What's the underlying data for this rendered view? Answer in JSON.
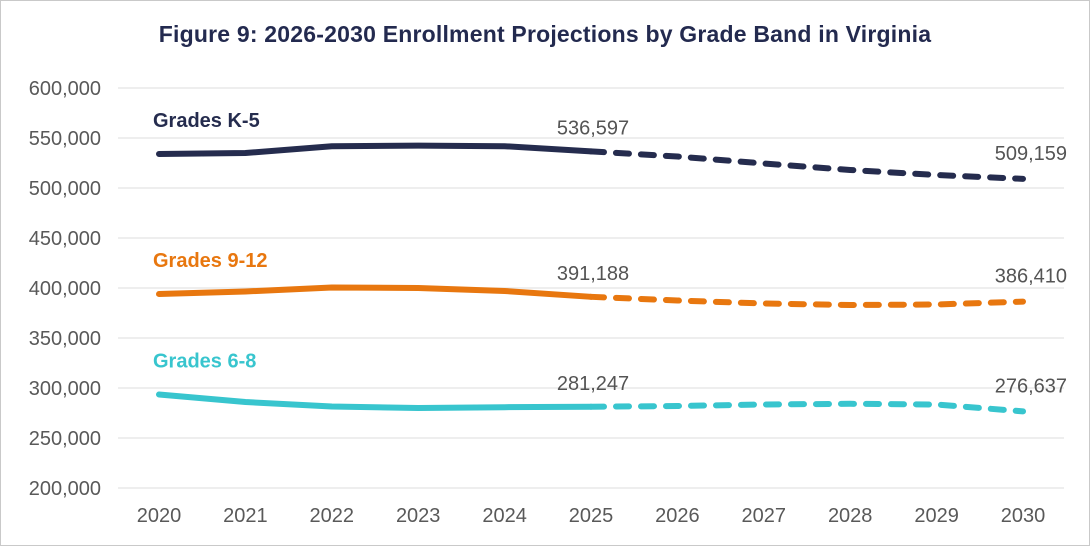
{
  "title": "Figure 9: 2026-2030 Enrollment Projections by Grade Band in Virginia",
  "colors": {
    "title": "#232a4f",
    "axis_text": "#595959",
    "annotation_text": "#545454",
    "gridline": "#e3e3e3",
    "border": "#c9c9c9",
    "background": "#ffffff",
    "navy": "#252c4e",
    "orange": "#e8770f",
    "teal": "#38c5ce"
  },
  "chart_data": {
    "type": "line",
    "title": "Figure 9: 2026-2030 Enrollment Projections by Grade Band in Virginia",
    "x": [
      2020,
      2021,
      2022,
      2023,
      2024,
      2025,
      2026,
      2027,
      2028,
      2029,
      2030
    ],
    "x_tick_labels": [
      "2020",
      "2021",
      "2022",
      "2023",
      "2024",
      "2025",
      "2026",
      "2027",
      "2028",
      "2029",
      "2030"
    ],
    "y_axis": {
      "min": 200000,
      "max": 600000,
      "step": 50000,
      "ticks": [
        {
          "value": 600000,
          "label": "600,000"
        },
        {
          "value": 550000,
          "label": "550,000"
        },
        {
          "value": 500000,
          "label": "500,000"
        },
        {
          "value": 450000,
          "label": "450,000"
        },
        {
          "value": 400000,
          "label": "400,000"
        },
        {
          "value": 350000,
          "label": "350,000"
        },
        {
          "value": 300000,
          "label": "300,000"
        },
        {
          "value": 250000,
          "label": "250,000"
        },
        {
          "value": 200000,
          "label": "200,000"
        }
      ]
    },
    "grid": "horizontal",
    "legend_position": "inline-left-of-each-line",
    "projection_start_x": 2025,
    "line_style_note": "solid 2020-2025 actual, dashed 2025-2030 projected",
    "series": [
      {
        "name": "Grades K-5",
        "color": "#252c4e",
        "values": [
          534000,
          535000,
          541800,
          542400,
          541800,
          536597,
          531500,
          524500,
          518000,
          513000,
          509159
        ],
        "annotations": [
          {
            "x": 2025,
            "value": 536597,
            "text": "536,597"
          },
          {
            "x": 2030,
            "value": 509159,
            "text": "509,159"
          }
        ]
      },
      {
        "name": "Grades 9-12",
        "color": "#e8770f",
        "values": [
          394000,
          396500,
          400500,
          400000,
          397000,
          391188,
          387500,
          384500,
          383000,
          383500,
          386410
        ],
        "annotations": [
          {
            "x": 2025,
            "value": 391188,
            "text": "391,188"
          },
          {
            "x": 2030,
            "value": 386410,
            "text": "386,410"
          }
        ]
      },
      {
        "name": "Grades 6-8",
        "color": "#38c5ce",
        "values": [
          293500,
          286000,
          281500,
          280000,
          280800,
          281247,
          282000,
          283500,
          284200,
          283500,
          276637
        ],
        "annotations": [
          {
            "x": 2025,
            "value": 281247,
            "text": "281,247"
          },
          {
            "x": 2030,
            "value": 276637,
            "text": "276,637"
          }
        ]
      }
    ]
  }
}
